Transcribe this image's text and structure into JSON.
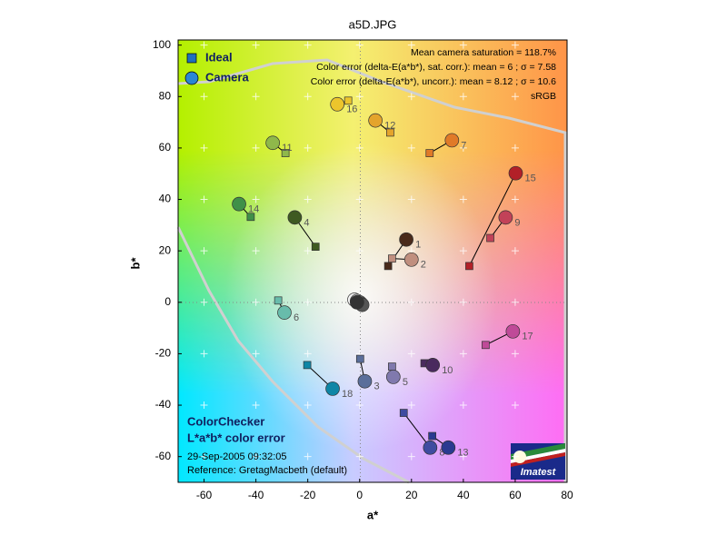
{
  "chart_data": {
    "type": "scatter",
    "title": "a5D.JPG",
    "x_label": "a*",
    "y_label": "b*",
    "xlim": [
      -70,
      80
    ],
    "ylim": [
      -70,
      102
    ],
    "xticks": [
      -60,
      -40,
      -20,
      0,
      20,
      40,
      60,
      80
    ],
    "yticks": [
      -60,
      -40,
      -20,
      0,
      20,
      40,
      60,
      80,
      100
    ],
    "legend": "top-left",
    "series": [
      {
        "name": "Ideal",
        "color": "#1f6fbf",
        "marker": "square",
        "x": [
          11,
          12.5,
          0.2,
          -17,
          12.5,
          -31.4,
          27,
          17,
          50.4,
          25,
          -28.6,
          11.8,
          28,
          -42,
          42.3,
          -4.4,
          48.6,
          -20.2,
          0,
          0,
          0,
          0,
          0,
          0
        ],
        "values": [
          14.1,
          17,
          -22,
          21.6,
          -25,
          0.7,
          58,
          -43,
          25,
          -23.7,
          58,
          66,
          -52,
          33.2,
          14.1,
          78.4,
          -16.6,
          -24.4,
          0,
          0,
          0,
          0,
          0,
          0
        ]
      },
      {
        "name": "Camera",
        "color": "#2a86d4",
        "marker": "circle",
        "x": [
          18,
          20,
          2,
          -25,
          13,
          -29,
          35.6,
          27.2,
          56.3,
          28.2,
          -33.5,
          6.1,
          34.2,
          -46.5,
          60.2,
          -8.6,
          59.1,
          -10.4,
          -2,
          -1,
          0,
          0.5,
          1,
          -1
        ],
        "values": [
          24.4,
          16.6,
          -30.7,
          33,
          -29,
          -4,
          63,
          -56.5,
          33,
          -24.4,
          62,
          70.7,
          -56.5,
          38.2,
          50.2,
          77,
          -11.3,
          -33.6,
          1,
          0.5,
          0,
          -0.5,
          -1,
          0
        ]
      }
    ],
    "point_labels": [
      "1",
      "2",
      "3",
      "4",
      "5",
      "6",
      "7",
      "8",
      "9",
      "10",
      "11",
      "12",
      "13",
      "14",
      "15",
      "16",
      "17",
      "18",
      null,
      null,
      null,
      null,
      null,
      null
    ],
    "point_colors": [
      "#4a2a1a",
      "#c08f7f",
      "#5a6e9a",
      "#3f5a22",
      "#8079ad",
      "#68bcab",
      "#e07a28",
      "#3f4ca0",
      "#c24258",
      "#4a2a5e",
      "#8fb84a",
      "#e4a42c",
      "#2a3a90",
      "#3f9048",
      "#b22028",
      "#ecc52c",
      "#bf4a98",
      "#0e86a6",
      "#f3f3f3",
      "#c8c8c8",
      "#a0a0a0",
      "#7a7a7a",
      "#555555",
      "#333333"
    ],
    "info_lines": [
      "Mean camera saturation = 118.7%",
      "Color error (delta-E(a*b*), sat. corr.):  mean = 6 ;  σ = 7.58",
      "Color error (delta-E(a*b*), uncorr.):  mean = 8.12 ;  σ = 10.6",
      "sRGB"
    ],
    "footer_title": [
      "ColorChecker",
      "L*a*b* color error"
    ],
    "footer_lines": [
      "29-Sep-2005 09:32:05",
      "Reference: GretagMacbeth (default)"
    ],
    "logo_text": "Imatest"
  }
}
